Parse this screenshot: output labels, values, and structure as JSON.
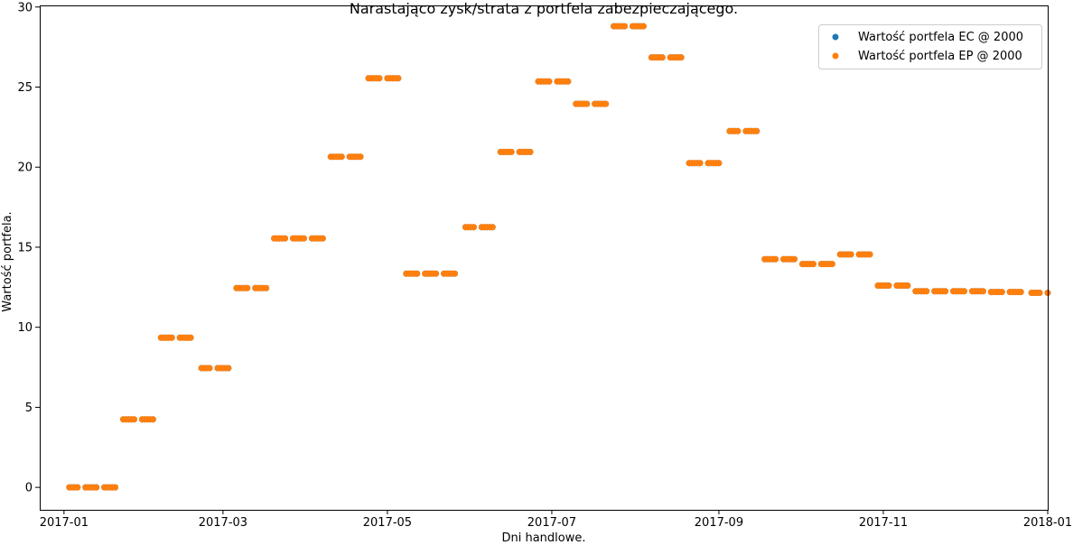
{
  "chart_data": {
    "type": "scatter",
    "title": "Narastająco zysk/strata z portfela zabezpieczającego.",
    "xlabel": "Dni handlowe.",
    "ylabel": "Wartość portfela.",
    "xlim": [
      "2016-12-23",
      "2018-01-01"
    ],
    "ylim": [
      -1.4,
      30.1
    ],
    "x_ticks": [
      "2017-01",
      "2017-03",
      "2017-05",
      "2017-07",
      "2017-09",
      "2017-11",
      "2018-01"
    ],
    "y_ticks": [
      0,
      5,
      10,
      15,
      20,
      25,
      30
    ],
    "grid": false,
    "legend_position": "top-right",
    "steps": [
      {
        "start": "2017-01-03",
        "end": "2017-01-20",
        "value": 0.0
      },
      {
        "start": "2017-01-23",
        "end": "2017-02-03",
        "value": 4.25
      },
      {
        "start": "2017-02-06",
        "end": "2017-02-17",
        "value": 9.35
      },
      {
        "start": "2017-02-21",
        "end": "2017-03-03",
        "value": 7.45
      },
      {
        "start": "2017-03-06",
        "end": "2017-03-17",
        "value": 12.45
      },
      {
        "start": "2017-03-20",
        "end": "2017-04-07",
        "value": 15.55
      },
      {
        "start": "2017-04-10",
        "end": "2017-04-21",
        "value": 20.65
      },
      {
        "start": "2017-04-24",
        "end": "2017-05-05",
        "value": 25.55
      },
      {
        "start": "2017-05-08",
        "end": "2017-05-26",
        "value": 13.35
      },
      {
        "start": "2017-05-30",
        "end": "2017-06-09",
        "value": 16.25
      },
      {
        "start": "2017-06-12",
        "end": "2017-06-23",
        "value": 20.95
      },
      {
        "start": "2017-06-26",
        "end": "2017-07-07",
        "value": 25.35
      },
      {
        "start": "2017-07-10",
        "end": "2017-07-21",
        "value": 23.95
      },
      {
        "start": "2017-07-24",
        "end": "2017-08-04",
        "value": 28.8
      },
      {
        "start": "2017-08-07",
        "end": "2017-08-18",
        "value": 26.85
      },
      {
        "start": "2017-08-21",
        "end": "2017-09-01",
        "value": 20.25
      },
      {
        "start": "2017-09-05",
        "end": "2017-09-15",
        "value": 22.25
      },
      {
        "start": "2017-09-18",
        "end": "2017-09-29",
        "value": 14.25
      },
      {
        "start": "2017-10-02",
        "end": "2017-10-13",
        "value": 13.95
      },
      {
        "start": "2017-10-16",
        "end": "2017-10-27",
        "value": 14.55
      },
      {
        "start": "2017-10-30",
        "end": "2017-11-10",
        "value": 12.6
      },
      {
        "start": "2017-11-13",
        "end": "2017-11-24",
        "value": 12.25
      },
      {
        "start": "2017-11-27",
        "end": "2017-12-08",
        "value": 12.25
      },
      {
        "start": "2017-12-11",
        "end": "2017-12-22",
        "value": 12.2
      },
      {
        "start": "2017-12-26",
        "end": "2018-01-05",
        "value": 12.15
      }
    ],
    "series": [
      {
        "name": "Wartość portfela EC @ 2000",
        "color": "#1f77b4",
        "follows": "steps"
      },
      {
        "name": "Wartość portfela EP @ 2000",
        "color": "#ff7f0e",
        "follows": "steps"
      }
    ]
  }
}
